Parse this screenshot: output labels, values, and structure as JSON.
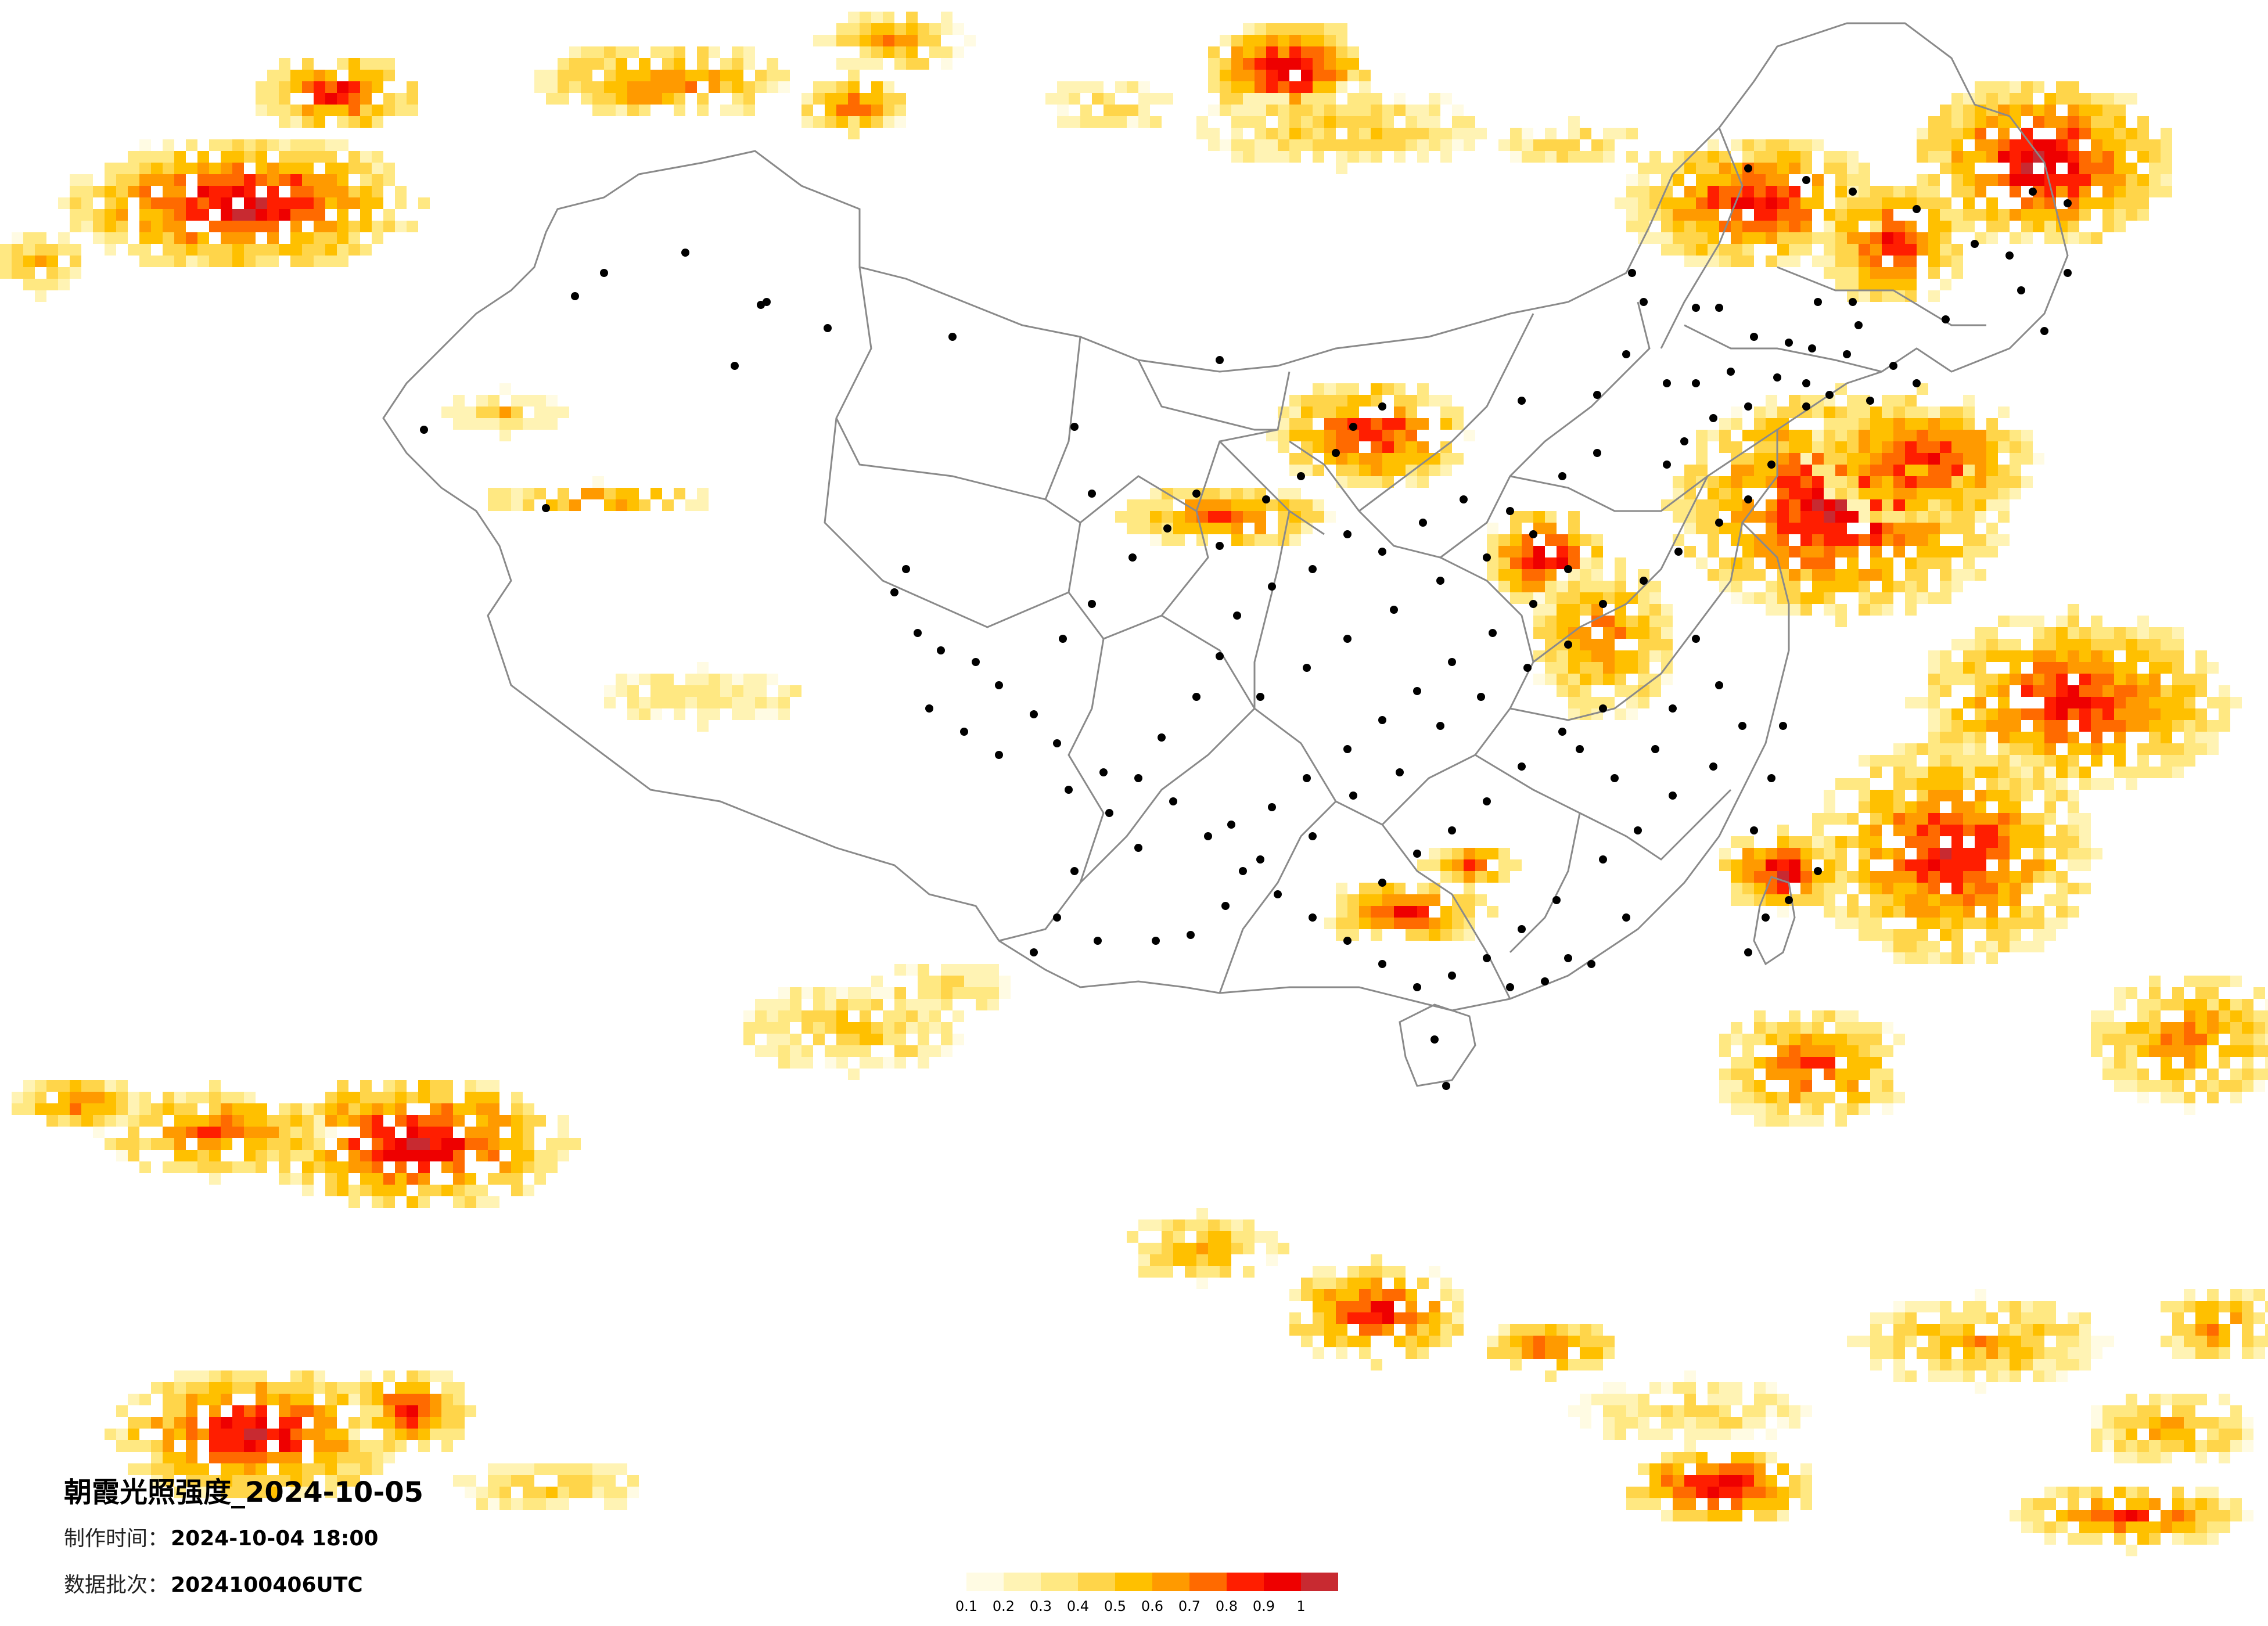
{
  "title": "朝霞光照强度_2024-10-05",
  "made_time": {
    "label": "制作时间：",
    "value": "2024-10-04 18:00"
  },
  "data_batch": {
    "label": "数据批次：",
    "value": "2024100406UTC"
  },
  "legend": {
    "colors": [
      "#fffbe3",
      "#fff3b4",
      "#ffe882",
      "#ffd54a",
      "#ffc000",
      "#ff9a00",
      "#ff6a00",
      "#ff1e00",
      "#ee0000",
      "#c82a31"
    ],
    "ticks": [
      "0.1",
      "0.2",
      "0.3",
      "0.4",
      "0.5",
      "0.6",
      "0.7",
      "0.8",
      "0.9",
      "1"
    ]
  },
  "colors": {
    "border": "#8a8a8a",
    "city_dot": "#000000",
    "background": "#ffffff"
  }
}
